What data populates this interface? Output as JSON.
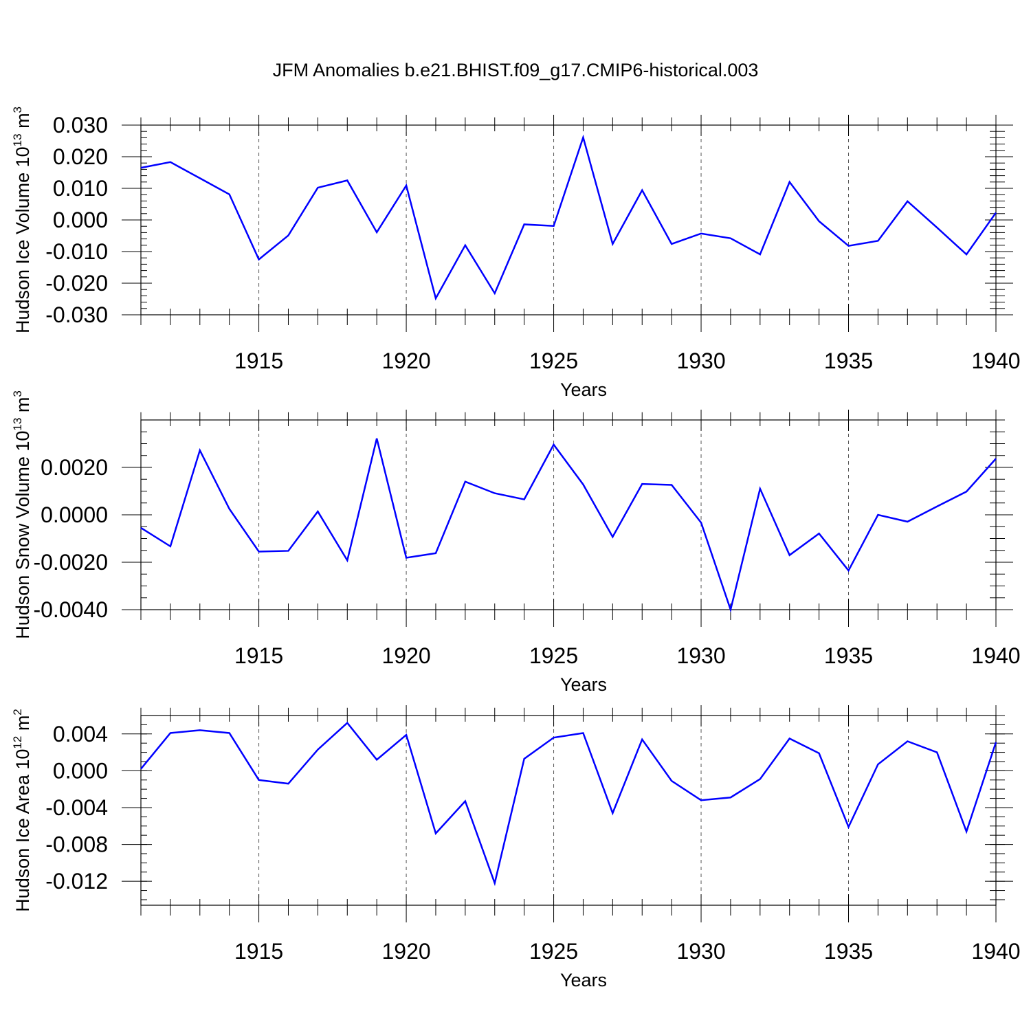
{
  "title": "JFM Anomalies b.e21.BHIST.f09_g17.CMIP6-historical.003",
  "colors": {
    "line": "#0000ff",
    "axes": "#000000",
    "grid": "#555555"
  },
  "chart_data": [
    {
      "type": "line",
      "ylabel_main": "Hudson Ice Volume 10",
      "ylabel_exp": "13",
      "ylabel_unit": " m",
      "ylabel_unit_exp": "3",
      "xlabel": "Years",
      "xlim": [
        1911,
        1940
      ],
      "ylim": [
        -0.03,
        0.03
      ],
      "yticks": [
        -0.03,
        -0.02,
        -0.01,
        0.0,
        0.01,
        0.02,
        0.03
      ],
      "ytick_labels": [
        "-0.030",
        "-0.020",
        "-0.010",
        "0.000",
        "0.010",
        "0.020",
        "0.030"
      ],
      "yminor_step": 0.002,
      "xticks": [
        1915,
        1920,
        1925,
        1930,
        1935,
        1940
      ],
      "xtick_labels": [
        "1915",
        "1920",
        "1925",
        "1930",
        "1935",
        "1940"
      ],
      "x": [
        1911,
        1912,
        1913,
        1914,
        1915,
        1916,
        1917,
        1918,
        1919,
        1920,
        1921,
        1922,
        1923,
        1924,
        1925,
        1926,
        1927,
        1928,
        1929,
        1930,
        1931,
        1932,
        1933,
        1934,
        1935,
        1936,
        1937,
        1938,
        1939,
        1940
      ],
      "values": [
        0.0165,
        0.0183,
        0.0132,
        0.0081,
        -0.0125,
        -0.0049,
        0.0102,
        0.0125,
        -0.0039,
        0.0109,
        -0.0248,
        -0.008,
        -0.0232,
        -0.0014,
        -0.0019,
        0.0261,
        -0.0076,
        0.0094,
        -0.0076,
        -0.0043,
        -0.0058,
        -0.0109,
        0.012,
        -0.0004,
        -0.0082,
        -0.0066,
        0.0059,
        -0.0024,
        -0.0109,
        0.0023
      ]
    },
    {
      "type": "line",
      "ylabel_main": "Hudson Snow Volume 10",
      "ylabel_exp": "13",
      "ylabel_unit": " m",
      "ylabel_unit_exp": "3",
      "xlabel": "Years",
      "xlim": [
        1911,
        1940
      ],
      "ylim": [
        -0.004,
        0.004
      ],
      "yticks": [
        -0.004,
        -0.002,
        0.0,
        0.002
      ],
      "ytick_labels": [
        "-0.0040",
        "-0.0020",
        "0.0000",
        "0.0020"
      ],
      "yminor_step": 0.0005,
      "xticks": [
        1915,
        1920,
        1925,
        1930,
        1935,
        1940
      ],
      "xtick_labels": [
        "1915",
        "1920",
        "1925",
        "1930",
        "1935",
        "1940"
      ],
      "x": [
        1911,
        1912,
        1913,
        1914,
        1915,
        1916,
        1917,
        1918,
        1919,
        1920,
        1921,
        1922,
        1923,
        1924,
        1925,
        1926,
        1927,
        1928,
        1929,
        1930,
        1931,
        1932,
        1933,
        1934,
        1935,
        1936,
        1937,
        1938,
        1939,
        1940
      ],
      "values": [
        -0.00055,
        -0.00133,
        0.00272,
        0.00025,
        -0.00155,
        -0.00152,
        0.00014,
        -0.00192,
        0.00322,
        -0.00181,
        -0.00162,
        0.0014,
        0.00091,
        0.00065,
        0.00296,
        0.00128,
        -0.00093,
        0.0013,
        0.00126,
        -0.00033,
        -0.004,
        0.0011,
        -0.0017,
        -0.00079,
        -0.00235,
        0.0,
        -0.00029,
        0.00035,
        0.00098,
        0.00237
      ]
    },
    {
      "type": "line",
      "ylabel_main": "Hudson Ice Area 10",
      "ylabel_exp": "12",
      "ylabel_unit": " m",
      "ylabel_unit_exp": "2",
      "xlabel": "Years",
      "xlim": [
        1911,
        1940
      ],
      "ylim": [
        -0.0146,
        0.006
      ],
      "yticks": [
        -0.012,
        -0.008,
        -0.004,
        0.0,
        0.004
      ],
      "ytick_labels": [
        "-0.012",
        "-0.008",
        "-0.004",
        "0.000",
        "0.004"
      ],
      "yminor_step": 0.001,
      "xticks": [
        1915,
        1920,
        1925,
        1930,
        1935,
        1940
      ],
      "xtick_labels": [
        "1915",
        "1920",
        "1925",
        "1930",
        "1935",
        "1940"
      ],
      "x": [
        1911,
        1912,
        1913,
        1914,
        1915,
        1916,
        1917,
        1918,
        1919,
        1920,
        1921,
        1922,
        1923,
        1924,
        1925,
        1926,
        1927,
        1928,
        1929,
        1930,
        1931,
        1932,
        1933,
        1934,
        1935,
        1936,
        1937,
        1938,
        1939,
        1940
      ],
      "values": [
        0.0002,
        0.0041,
        0.0044,
        0.0041,
        -0.001,
        -0.0014,
        0.0023,
        0.0052,
        0.0012,
        0.0039,
        -0.0068,
        -0.0033,
        -0.0122,
        0.0013,
        0.0036,
        0.0041,
        -0.0046,
        0.0034,
        -0.0011,
        -0.0032,
        -0.0029,
        -0.0009,
        0.0035,
        0.0019,
        -0.0061,
        0.0007,
        0.0032,
        0.002,
        -0.0066,
        0.0031
      ]
    }
  ]
}
